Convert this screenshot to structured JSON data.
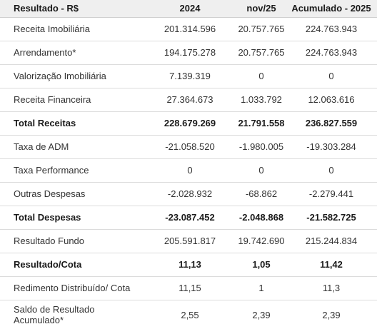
{
  "header": [
    "Resultado - R$",
    "2024",
    "nov/25",
    "Acumulado - 2025"
  ],
  "rows": [
    {
      "label": "Receita Imobiliária",
      "v2024": "201.314.596",
      "nov25": "20.757.765",
      "acum": "224.763.943",
      "bold": false
    },
    {
      "label": "Arrendamento*",
      "v2024": "194.175.278",
      "nov25": "20.757.765",
      "acum": "224.763.943",
      "bold": false
    },
    {
      "label": "Valorização Imobiliária",
      "v2024": "7.139.319",
      "nov25": "0",
      "acum": "0",
      "bold": false
    },
    {
      "label": "Receita Financeira",
      "v2024": "27.364.673",
      "nov25": "1.033.792",
      "acum": "12.063.616",
      "bold": false
    },
    {
      "label": "Total Receitas",
      "v2024": "228.679.269",
      "nov25": "21.791.558",
      "acum": "236.827.559",
      "bold": true
    },
    {
      "label": "Taxa de ADM",
      "v2024": "-21.058.520",
      "nov25": "-1.980.005",
      "acum": "-19.303.284",
      "bold": false
    },
    {
      "label": "Taxa Performance",
      "v2024": "0",
      "nov25": "0",
      "acum": "0",
      "bold": false
    },
    {
      "label": "Outras Despesas",
      "v2024": "-2.028.932",
      "nov25": "-68.862",
      "acum": "-2.279.441",
      "bold": false
    },
    {
      "label": "Total Despesas",
      "v2024": "-23.087.452",
      "nov25": "-2.048.868",
      "acum": "-21.582.725",
      "bold": true
    },
    {
      "label": "Resultado Fundo",
      "v2024": "205.591.817",
      "nov25": "19.742.690",
      "acum": "215.244.834",
      "bold": false
    },
    {
      "label": "Resultado/Cota",
      "v2024": "11,13",
      "nov25": "1,05",
      "acum": "11,42",
      "bold": true
    },
    {
      "label": "Redimento Distribuído/ Cota",
      "v2024": "11,15",
      "nov25": "1",
      "acum": "11,3",
      "bold": false
    },
    {
      "label": "Saldo de Resultado\nAcumulado*",
      "v2024": "2,55",
      "nov25": "2,39",
      "acum": "2,39",
      "bold": false
    }
  ]
}
